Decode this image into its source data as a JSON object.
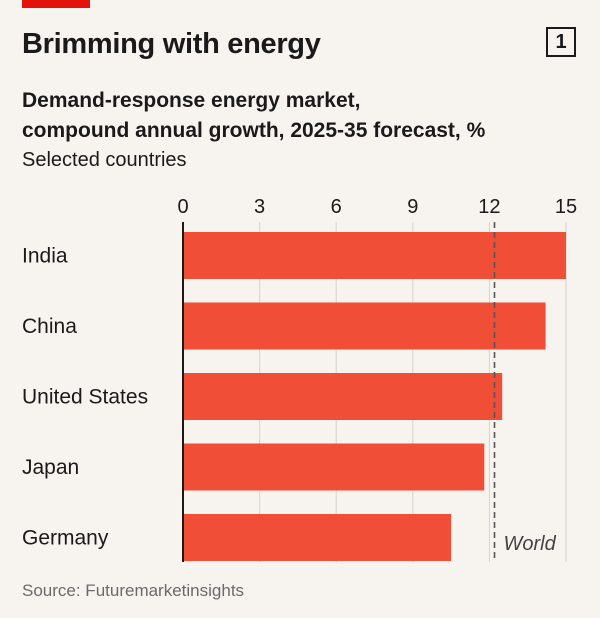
{
  "header": {
    "title": "Brimming with energy",
    "figure_number": "1",
    "subtitle_line1": "Demand-response energy market,",
    "subtitle_line2": "compound annual growth, 2025-35 forecast, %",
    "subtitle_line3": "Selected countries"
  },
  "footer": {
    "source": "Source: Futuremarketinsights"
  },
  "colors": {
    "bar": "#f04e37",
    "accent": "#e3120b",
    "background": "#f7f3ef",
    "reference_line": "#555555"
  },
  "chart_data": {
    "type": "bar",
    "orientation": "horizontal",
    "categories": [
      "India",
      "China",
      "United States",
      "Japan",
      "Germany"
    ],
    "values": [
      15.0,
      14.2,
      12.5,
      11.8,
      10.5
    ],
    "xlim": [
      0,
      15
    ],
    "xticks": [
      0,
      3,
      6,
      9,
      12,
      15
    ],
    "grid": true,
    "reference_line": {
      "label": "World",
      "value": 12.2
    }
  }
}
